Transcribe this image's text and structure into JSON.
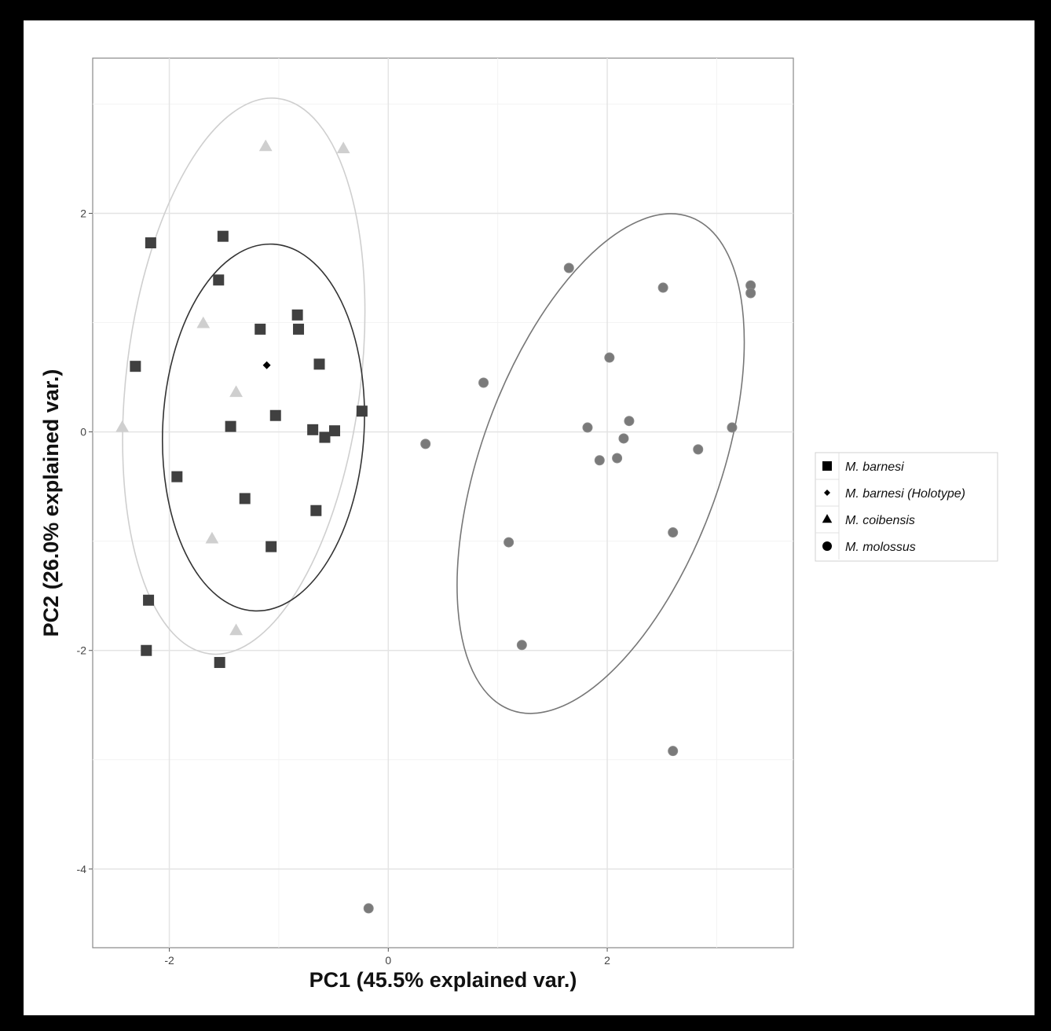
{
  "chart_data": {
    "type": "scatter",
    "title": "",
    "xlabel": "PC1 (45.5% explained var.)",
    "ylabel": "PC2 (26.0% explained var.)",
    "xlim": [
      -2.7,
      3.7
    ],
    "ylim": [
      -4.72,
      3.42
    ],
    "xticks": [
      -2,
      0,
      2
    ],
    "xtick_labels": [
      "-2",
      "0",
      "2"
    ],
    "yticks": [
      -4,
      -2,
      0,
      2
    ],
    "ytick_labels": [
      "-4",
      "-2",
      "0",
      "2"
    ],
    "grid": true,
    "legend_position": "right",
    "series": [
      {
        "name": "M. barnesi",
        "marker": "square",
        "color": "#404040",
        "points": [
          [
            -2.17,
            1.73
          ],
          [
            -1.51,
            1.79
          ],
          [
            -1.55,
            1.39
          ],
          [
            -2.31,
            0.6
          ],
          [
            -1.17,
            0.94
          ],
          [
            -0.83,
            1.07
          ],
          [
            -0.82,
            0.94
          ],
          [
            -0.63,
            0.62
          ],
          [
            -1.03,
            0.15
          ],
          [
            -1.44,
            0.05
          ],
          [
            -0.69,
            0.02
          ],
          [
            -0.58,
            -0.05
          ],
          [
            -0.49,
            0.01
          ],
          [
            -0.24,
            0.19
          ],
          [
            -1.93,
            -0.41
          ],
          [
            -1.31,
            -0.61
          ],
          [
            -0.66,
            -0.72
          ],
          [
            -1.07,
            -1.05
          ],
          [
            -2.19,
            -1.54
          ],
          [
            -2.21,
            -2.0
          ],
          [
            -1.54,
            -2.11
          ]
        ]
      },
      {
        "name": "M. barnesi (Holotype)",
        "marker": "diamond",
        "color": "#000000",
        "points": [
          [
            -1.11,
            0.61
          ]
        ]
      },
      {
        "name": "M. coibensis",
        "marker": "triangle",
        "color": "#cfcfcf",
        "points": [
          [
            -1.12,
            2.61
          ],
          [
            -0.41,
            2.59
          ],
          [
            -1.69,
            0.99
          ],
          [
            -1.39,
            0.36
          ],
          [
            -2.43,
            0.04
          ],
          [
            -1.61,
            -0.98
          ],
          [
            -1.39,
            -1.82
          ]
        ]
      },
      {
        "name": "M. molossus",
        "marker": "circle",
        "color": "#7a7a7a",
        "points": [
          [
            1.65,
            1.5
          ],
          [
            2.51,
            1.32
          ],
          [
            3.31,
            1.34
          ],
          [
            3.31,
            1.27
          ],
          [
            2.02,
            0.68
          ],
          [
            0.87,
            0.45
          ],
          [
            2.2,
            0.1
          ],
          [
            1.82,
            0.04
          ],
          [
            2.15,
            -0.06
          ],
          [
            3.14,
            0.04
          ],
          [
            2.83,
            -0.16
          ],
          [
            1.93,
            -0.26
          ],
          [
            2.09,
            -0.24
          ],
          [
            0.34,
            -0.11
          ],
          [
            1.1,
            -1.01
          ],
          [
            2.6,
            -0.92
          ],
          [
            1.22,
            -1.95
          ],
          [
            2.6,
            -2.92
          ],
          [
            -0.18,
            -4.36
          ]
        ]
      }
    ],
    "ellipses": [
      {
        "group": "M. coibensis",
        "color": "#cfcfcf",
        "cx": -1.32,
        "cy": 0.51,
        "rx": 1.07,
        "ry": 2.56,
        "angle": 7
      },
      {
        "group": "M. barnesi",
        "color": "#333333",
        "cx": -1.14,
        "cy": 0.04,
        "rx": 0.92,
        "ry": 1.68,
        "angle": 3
      },
      {
        "group": "M. molossus",
        "color": "#777777",
        "cx": 1.94,
        "cy": -0.29,
        "rx": 1.09,
        "ry": 2.4,
        "angle": 20
      }
    ]
  }
}
